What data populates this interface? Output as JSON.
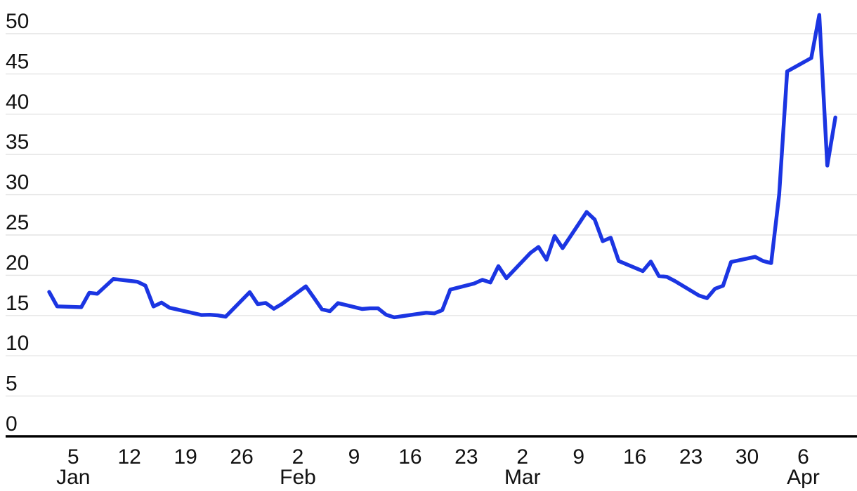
{
  "chart_data": {
    "type": "line",
    "title": "",
    "legend": "none",
    "grid": "horizontal-only",
    "line_color": "#1b35e2",
    "axis_color": "#000000",
    "grid_color": "#e4e4e4",
    "label_color": "#111111",
    "y_axis": {
      "ticks": [
        "0",
        "5",
        "10",
        "15",
        "20",
        "25",
        "30",
        "35",
        "40",
        "45",
        "50"
      ],
      "range": [
        0,
        52.6
      ]
    },
    "x_axis": {
      "tick_labels": [
        {
          "label": "5",
          "month": "Jan",
          "d": 3
        },
        {
          "label": "12",
          "month": "",
          "d": 10
        },
        {
          "label": "19",
          "month": "",
          "d": 17
        },
        {
          "label": "26",
          "month": "",
          "d": 24
        },
        {
          "label": "2",
          "month": "Feb",
          "d": 31
        },
        {
          "label": "9",
          "month": "",
          "d": 38
        },
        {
          "label": "16",
          "month": "",
          "d": 45
        },
        {
          "label": "23",
          "month": "",
          "d": 52
        },
        {
          "label": "2",
          "month": "Mar",
          "d": 59
        },
        {
          "label": "9",
          "month": "",
          "d": 66
        },
        {
          "label": "16",
          "month": "",
          "d": 73
        },
        {
          "label": "23",
          "month": "",
          "d": 80
        },
        {
          "label": "30",
          "month": "",
          "d": 87
        },
        {
          "label": "6",
          "month": "Apr",
          "d": 94
        }
      ]
    },
    "points": [
      {
        "date": "Jan 2",
        "d": 0,
        "v": 17.93
      },
      {
        "date": "Jan 3",
        "d": 1,
        "v": 16.13
      },
      {
        "date": "Jan 6",
        "d": 4,
        "v": 16.04
      },
      {
        "date": "Jan 7",
        "d": 5,
        "v": 17.82
      },
      {
        "date": "Jan 8",
        "d": 6,
        "v": 17.7
      },
      {
        "date": "Jan 10",
        "d": 8,
        "v": 19.54
      },
      {
        "date": "Jan 13",
        "d": 11,
        "v": 19.19
      },
      {
        "date": "Jan 14",
        "d": 12,
        "v": 18.71
      },
      {
        "date": "Jan 15",
        "d": 13,
        "v": 16.12
      },
      {
        "date": "Jan 16",
        "d": 14,
        "v": 16.6
      },
      {
        "date": "Jan 17",
        "d": 15,
        "v": 15.97
      },
      {
        "date": "Jan 21",
        "d": 19,
        "v": 15.06
      },
      {
        "date": "Jan 22",
        "d": 20,
        "v": 15.1
      },
      {
        "date": "Jan 23",
        "d": 21,
        "v": 15.02
      },
      {
        "date": "Jan 24",
        "d": 22,
        "v": 14.85
      },
      {
        "date": "Jan 27",
        "d": 25,
        "v": 17.9
      },
      {
        "date": "Jan 28",
        "d": 26,
        "v": 16.41
      },
      {
        "date": "Jan 29",
        "d": 27,
        "v": 16.56
      },
      {
        "date": "Jan 30",
        "d": 28,
        "v": 15.84
      },
      {
        "date": "Jan 31",
        "d": 29,
        "v": 16.43
      },
      {
        "date": "Feb 3",
        "d": 32,
        "v": 18.62
      },
      {
        "date": "Feb 4",
        "d": 33,
        "v": 17.21
      },
      {
        "date": "Feb 5",
        "d": 34,
        "v": 15.77
      },
      {
        "date": "Feb 6",
        "d": 35,
        "v": 15.54
      },
      {
        "date": "Feb 7",
        "d": 36,
        "v": 16.54
      },
      {
        "date": "Feb 10",
        "d": 39,
        "v": 15.81
      },
      {
        "date": "Feb 11",
        "d": 40,
        "v": 15.89
      },
      {
        "date": "Feb 12",
        "d": 41,
        "v": 15.89
      },
      {
        "date": "Feb 13",
        "d": 42,
        "v": 15.1
      },
      {
        "date": "Feb 14",
        "d": 43,
        "v": 14.77
      },
      {
        "date": "Feb 18",
        "d": 47,
        "v": 15.35
      },
      {
        "date": "Feb 19",
        "d": 48,
        "v": 15.27
      },
      {
        "date": "Feb 20",
        "d": 49,
        "v": 15.66
      },
      {
        "date": "Feb 21",
        "d": 50,
        "v": 18.21
      },
      {
        "date": "Feb 24",
        "d": 53,
        "v": 18.98
      },
      {
        "date": "Feb 25",
        "d": 54,
        "v": 19.43
      },
      {
        "date": "Feb 26",
        "d": 55,
        "v": 19.1
      },
      {
        "date": "Feb 27",
        "d": 56,
        "v": 21.13
      },
      {
        "date": "Feb 28",
        "d": 57,
        "v": 19.63
      },
      {
        "date": "Mar 3",
        "d": 60,
        "v": 22.78
      },
      {
        "date": "Mar 4",
        "d": 61,
        "v": 23.51
      },
      {
        "date": "Mar 5",
        "d": 62,
        "v": 21.93
      },
      {
        "date": "Mar 6",
        "d": 63,
        "v": 24.87
      },
      {
        "date": "Mar 7",
        "d": 64,
        "v": 23.37
      },
      {
        "date": "Mar 10",
        "d": 67,
        "v": 27.86
      },
      {
        "date": "Mar 11",
        "d": 68,
        "v": 26.92
      },
      {
        "date": "Mar 12",
        "d": 69,
        "v": 24.23
      },
      {
        "date": "Mar 13",
        "d": 70,
        "v": 24.66
      },
      {
        "date": "Mar 14",
        "d": 71,
        "v": 21.77
      },
      {
        "date": "Mar 17",
        "d": 74,
        "v": 20.51
      },
      {
        "date": "Mar 18",
        "d": 75,
        "v": 21.7
      },
      {
        "date": "Mar 19",
        "d": 76,
        "v": 19.9
      },
      {
        "date": "Mar 20",
        "d": 77,
        "v": 19.8
      },
      {
        "date": "Mar 21",
        "d": 78,
        "v": 19.28
      },
      {
        "date": "Mar 24",
        "d": 81,
        "v": 17.48
      },
      {
        "date": "Mar 25",
        "d": 82,
        "v": 17.15
      },
      {
        "date": "Mar 26",
        "d": 83,
        "v": 18.33
      },
      {
        "date": "Mar 27",
        "d": 84,
        "v": 18.69
      },
      {
        "date": "Mar 28",
        "d": 85,
        "v": 21.65
      },
      {
        "date": "Mar 31",
        "d": 88,
        "v": 22.28
      },
      {
        "date": "Apr 1",
        "d": 89,
        "v": 21.77
      },
      {
        "date": "Apr 2",
        "d": 90,
        "v": 21.51
      },
      {
        "date": "Apr 3",
        "d": 91,
        "v": 30.02
      },
      {
        "date": "Apr 4",
        "d": 92,
        "v": 45.31
      },
      {
        "date": "Apr 7",
        "d": 95,
        "v": 46.98
      },
      {
        "date": "Apr 8",
        "d": 96,
        "v": 52.33
      },
      {
        "date": "Apr 9",
        "d": 97,
        "v": 33.62
      },
      {
        "date": "Apr 10",
        "d": 98,
        "v": 39.6
      }
    ]
  }
}
